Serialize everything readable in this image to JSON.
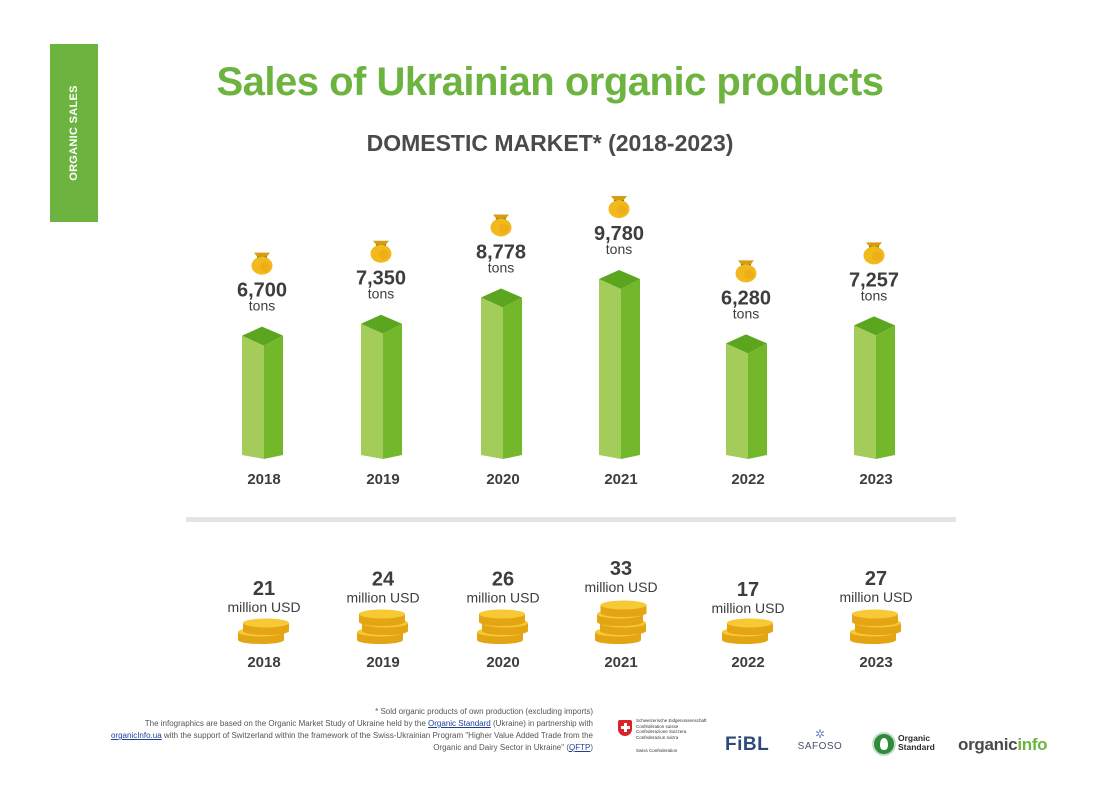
{
  "side_tab": "ORGANIC SALES",
  "title": "Sales of Ukrainian organic products",
  "subtitle": "DOMESTIC MARKET* (2018-2023)",
  "colors": {
    "accent": "#6db33f",
    "bar_front": "#a4cc5b",
    "bar_side": "#73b72b",
    "bar_top": "#5ca51f",
    "gold": "#f2b91c",
    "text": "#3d3d3d"
  },
  "icons": {
    "volume": "money-bag-icon",
    "value": "coin-stack-icon"
  },
  "chart_data": [
    {
      "type": "bar",
      "categories": [
        "2018",
        "2019",
        "2020",
        "2021",
        "2022",
        "2023"
      ],
      "values": [
        6700,
        7350,
        8778,
        9780,
        6280,
        7257
      ],
      "value_labels": [
        "6,700",
        "7,350",
        "8,778",
        "9,780",
        "6,280",
        "7,257"
      ],
      "unit": "tons"
    },
    {
      "type": "table",
      "categories": [
        "2018",
        "2019",
        "2020",
        "2021",
        "2022",
        "2023"
      ],
      "values": [
        21,
        24,
        26,
        33,
        17,
        27
      ],
      "value_labels": [
        "21",
        "24",
        "26",
        "33",
        "17",
        "27"
      ],
      "unit": "million USD"
    }
  ],
  "footnote": {
    "note": "* Sold organic products of own production (excluding imports)",
    "p1": "The infographics are based on the Organic Market Study of Ukraine held by the ",
    "link1": "Organic Standard",
    "p2": " (Ukraine) in partnership with ",
    "link2": "organicInfo.ua",
    "p3": " with the support of Switzerland within the framework of the Swiss-Ukrainian Program \"Higher Value Added Trade from the Organic and Dairy Sector in Ukraine\" (",
    "link3": "QFTP",
    "p4": ")"
  },
  "logos": {
    "swiss_lines": [
      "Schweizerische Eidgenossenschaft",
      "Confédération suisse",
      "Confederazione Svizzera",
      "Confederaziun svizra"
    ],
    "swiss_caption": "Swiss Confederation",
    "fibl": "FiBL",
    "safoso": "SAFOSO",
    "organic_standard_1": "Organic",
    "organic_standard_2": "Standard",
    "organicinfo_a": "organic",
    "organicinfo_b": "info"
  }
}
